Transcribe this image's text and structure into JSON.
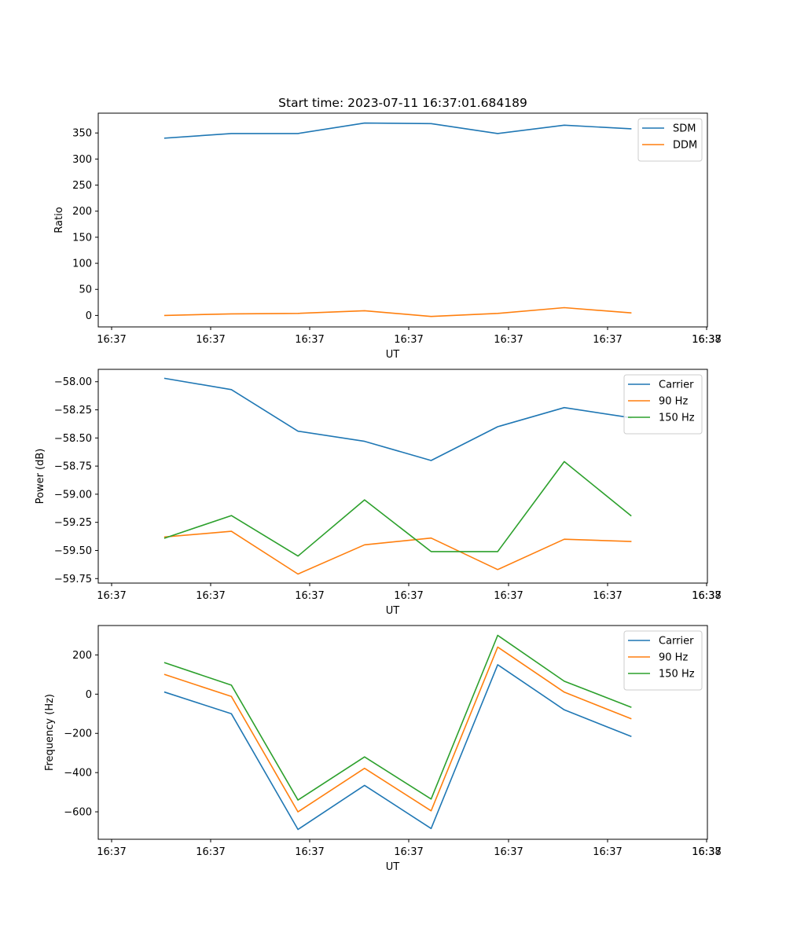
{
  "title": "Start time: 2023-07-11 16:37:01.684189",
  "colors": {
    "c0": "#1f77b4",
    "c1": "#ff7f0e",
    "c2": "#2ca02c"
  },
  "chart_data": [
    {
      "type": "line",
      "title": "Start time: 2023-07-11 16:37:01.684189",
      "xlabel": "UT",
      "ylabel": "Ratio",
      "x_ticks": [
        "16:37",
        "16:37",
        "16:37",
        "16:37",
        "16:37",
        "16:37",
        "16:37"
      ],
      "x_tick_last": "16:38",
      "xlim": [
        0,
        9.15
      ],
      "ylim": [
        -22,
        388
      ],
      "yticks": [
        0,
        50,
        100,
        150,
        200,
        250,
        300,
        350
      ],
      "ytick_labels": [
        "0",
        "50",
        "100",
        "150",
        "200",
        "250",
        "300",
        "350"
      ],
      "x": [
        1,
        2,
        3,
        4,
        5,
        6,
        7,
        8
      ],
      "series": [
        {
          "name": "SDM",
          "color": "#1f77b4",
          "values": [
            340,
            349,
            349,
            369,
            368,
            349,
            365,
            358
          ]
        },
        {
          "name": "DDM",
          "color": "#ff7f0e",
          "values": [
            0,
            3,
            4,
            9,
            -2,
            4,
            15,
            5
          ]
        }
      ],
      "legend": "top-right"
    },
    {
      "type": "line",
      "xlabel": "UT",
      "ylabel": "Power (dB)",
      "x_ticks": [
        "16:37",
        "16:37",
        "16:37",
        "16:37",
        "16:37",
        "16:37",
        "16:37"
      ],
      "x_tick_last": "16:38",
      "xlim": [
        0,
        9.15
      ],
      "ylim": [
        -59.79,
        -57.89
      ],
      "yticks": [
        -58.0,
        -58.25,
        -58.5,
        -58.75,
        -59.0,
        -59.25,
        -59.5,
        -59.75
      ],
      "ytick_labels": [
        "−58.00",
        "−58.25",
        "−58.50",
        "−58.75",
        "−59.00",
        "−59.25",
        "−59.50",
        "−59.75"
      ],
      "x": [
        1,
        2,
        3,
        4,
        5,
        6,
        7,
        8
      ],
      "series": [
        {
          "name": "Carrier",
          "color": "#1f77b4",
          "values": [
            -57.97,
            -58.07,
            -58.44,
            -58.53,
            -58.7,
            -58.4,
            -58.23,
            -58.32
          ]
        },
        {
          "name": "90 Hz",
          "color": "#ff7f0e",
          "values": [
            -59.38,
            -59.33,
            -59.71,
            -59.45,
            -59.39,
            -59.67,
            -59.4,
            -59.42
          ]
        },
        {
          "name": "150 Hz",
          "color": "#2ca02c",
          "values": [
            -59.39,
            -59.19,
            -59.55,
            -59.05,
            -59.51,
            -59.51,
            -58.71,
            -59.19
          ]
        }
      ],
      "legend": "top-right"
    },
    {
      "type": "line",
      "xlabel": "UT",
      "ylabel": "Frequency (Hz)",
      "x_ticks": [
        "16:37",
        "16:37",
        "16:37",
        "16:37",
        "16:37",
        "16:37",
        "16:37"
      ],
      "x_tick_last": "16:38",
      "xlim": [
        0,
        9.15
      ],
      "ylim": [
        -740,
        350
      ],
      "yticks": [
        200,
        0,
        -200,
        -400,
        -600
      ],
      "ytick_labels": [
        "200",
        "0",
        "−200",
        "−400",
        "−600"
      ],
      "x": [
        1,
        2,
        3,
        4,
        5,
        6,
        7,
        8
      ],
      "series": [
        {
          "name": "Carrier",
          "color": "#1f77b4",
          "values": [
            10,
            -100,
            -690,
            -465,
            -685,
            150,
            -80,
            -215
          ]
        },
        {
          "name": "90 Hz",
          "color": "#ff7f0e",
          "values": [
            100,
            -12,
            -600,
            -378,
            -595,
            240,
            10,
            -125
          ]
        },
        {
          "name": "150 Hz",
          "color": "#2ca02c",
          "values": [
            160,
            46,
            -540,
            -320,
            -535,
            300,
            66,
            -66
          ]
        }
      ],
      "legend": "top-right"
    }
  ]
}
